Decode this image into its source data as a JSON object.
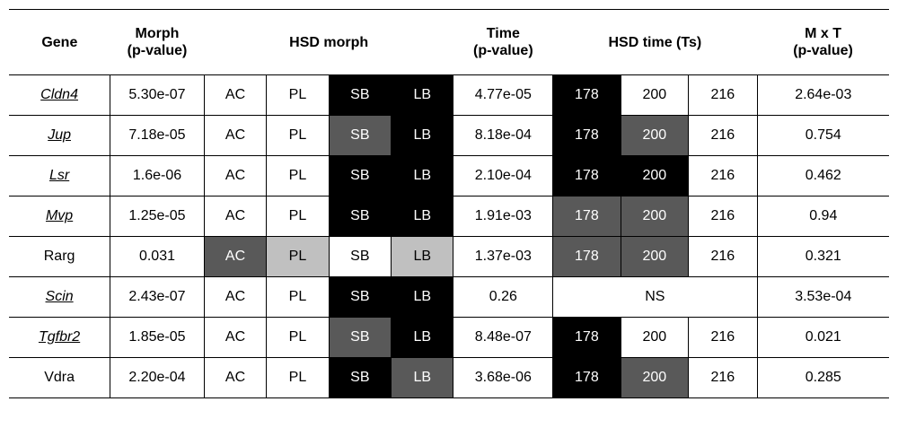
{
  "headers": {
    "gene": "Gene",
    "morph_line1": "Morph",
    "morph_line2": "(p-value)",
    "hsd_morph": "HSD morph",
    "time_line1": "Time",
    "time_line2": "(p-value)",
    "hsd_time": "HSD time (Ts)",
    "mxt_line1": "M x T",
    "mxt_line2": "(p-value)"
  },
  "shade_colors": {
    "black": "#000000",
    "dark": "#595959",
    "light": "#c0c0c0",
    "white": "#ffffff"
  },
  "rows": [
    {
      "gene": "Cldn4",
      "gene_style": "italic-underline",
      "morph_p": "5.30e-07",
      "ac": "AC",
      "ac_shade": "white",
      "pl": "PL",
      "pl_shade": "white",
      "sb": "SB",
      "sb_shade": "black",
      "lb": "LB",
      "lb_shade": "black",
      "time_p": "4.77e-05",
      "t178": "178",
      "t178_shade": "black",
      "t200": "200",
      "t200_shade": "white",
      "t216": "216",
      "t216_shade": "white",
      "mxt_p": "2.64e-03"
    },
    {
      "gene": "Jup",
      "gene_style": "italic-underline",
      "morph_p": "7.18e-05",
      "ac": "AC",
      "ac_shade": "white",
      "pl": "PL",
      "pl_shade": "white",
      "sb": "SB",
      "sb_shade": "dark",
      "lb": "LB",
      "lb_shade": "black",
      "time_p": "8.18e-04",
      "t178": "178",
      "t178_shade": "black",
      "t200": "200",
      "t200_shade": "dark",
      "t216": "216",
      "t216_shade": "white",
      "mxt_p": "0.754"
    },
    {
      "gene": "Lsr",
      "gene_style": "italic-underline",
      "morph_p": "1.6e-06",
      "ac": "AC",
      "ac_shade": "white",
      "pl": "PL",
      "pl_shade": "white",
      "sb": "SB",
      "sb_shade": "black",
      "lb": "LB",
      "lb_shade": "black",
      "time_p": "2.10e-04",
      "t178": "178",
      "t178_shade": "black",
      "t200": "200",
      "t200_shade": "black",
      "t216": "216",
      "t216_shade": "white",
      "mxt_p": "0.462"
    },
    {
      "gene": "Mvp",
      "gene_style": "italic-underline",
      "morph_p": "1.25e-05",
      "ac": "AC",
      "ac_shade": "white",
      "pl": "PL",
      "pl_shade": "white",
      "sb": "SB",
      "sb_shade": "black",
      "lb": "LB",
      "lb_shade": "black",
      "time_p": "1.91e-03",
      "t178": "178",
      "t178_shade": "dark",
      "t200": "200",
      "t200_shade": "dark",
      "t216": "216",
      "t216_shade": "white",
      "mxt_p": "0.94"
    },
    {
      "gene": "Rarg",
      "gene_style": "plain",
      "morph_p": "0.031",
      "ac": "AC",
      "ac_shade": "dark",
      "pl": "PL",
      "pl_shade": "light",
      "sb": "SB",
      "sb_shade": "white",
      "lb": "LB",
      "lb_shade": "light",
      "time_p": "1.37e-03",
      "t178": "178",
      "t178_shade": "dark",
      "t200": "200",
      "t200_shade": "dark",
      "t216": "216",
      "t216_shade": "white",
      "mxt_p": "0.321"
    },
    {
      "gene": "Scin",
      "gene_style": "italic-underline",
      "morph_p": "2.43e-07",
      "ac": "AC",
      "ac_shade": "white",
      "pl": "PL",
      "pl_shade": "white",
      "sb": "SB",
      "sb_shade": "black",
      "lb": "LB",
      "lb_shade": "black",
      "time_p": "0.26",
      "hsd_time_ns": "NS",
      "mxt_p": "3.53e-04"
    },
    {
      "gene": "Tgfbr2",
      "gene_style": "italic-underline",
      "morph_p": "1.85e-05",
      "ac": "AC",
      "ac_shade": "white",
      "pl": "PL",
      "pl_shade": "white",
      "sb": "SB",
      "sb_shade": "dark",
      "lb": "LB",
      "lb_shade": "black",
      "time_p": "8.48e-07",
      "t178": "178",
      "t178_shade": "black",
      "t200": "200",
      "t200_shade": "white",
      "t216": "216",
      "t216_shade": "white",
      "mxt_p": "0.021"
    },
    {
      "gene": "Vdra",
      "gene_style": "plain",
      "morph_p": "2.20e-04",
      "ac": "AC",
      "ac_shade": "white",
      "pl": "PL",
      "pl_shade": "white",
      "sb": "SB",
      "sb_shade": "black",
      "lb": "LB",
      "lb_shade": "dark",
      "time_p": "3.68e-06",
      "t178": "178",
      "t178_shade": "black",
      "t200": "200",
      "t200_shade": "dark",
      "t216": "216",
      "t216_shade": "white",
      "mxt_p": "0.285"
    }
  ]
}
